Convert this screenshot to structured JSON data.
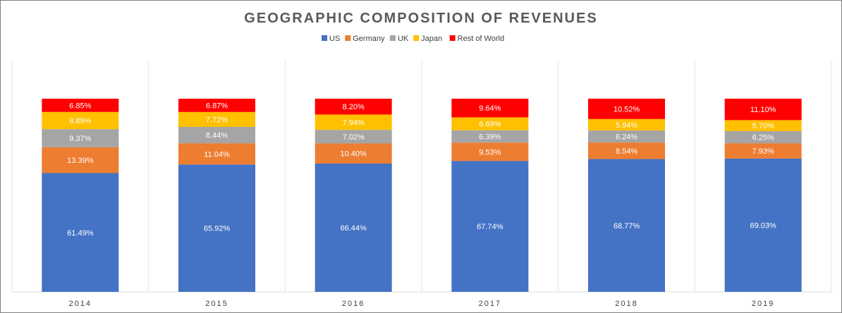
{
  "chart_data": {
    "type": "bar",
    "stacked": true,
    "title": "GEOGRAPHIC COMPOSITION OF REVENUES",
    "categories": [
      "2014",
      "2015",
      "2016",
      "2017",
      "2018",
      "2019"
    ],
    "series": [
      {
        "name": "US",
        "color": "#4472C4",
        "label_color": "#ffffff",
        "values": [
          61.49,
          65.92,
          66.44,
          67.74,
          68.77,
          69.03
        ]
      },
      {
        "name": "Germany",
        "color": "#ED7D31",
        "label_color": "#ffffff",
        "values": [
          13.39,
          11.04,
          10.4,
          9.53,
          8.54,
          7.93
        ]
      },
      {
        "name": "UK",
        "color": "#A5A5A5",
        "label_color": "#ffffff",
        "values": [
          9.37,
          8.44,
          7.02,
          6.39,
          6.24,
          6.25
        ]
      },
      {
        "name": "Japan",
        "color": "#FFC000",
        "label_color": "#ffffff",
        "values": [
          8.89,
          7.72,
          7.94,
          6.69,
          5.94,
          5.7
        ]
      },
      {
        "name": "Rest of World",
        "color": "#FF0000",
        "label_color": "#ffffff",
        "values": [
          6.85,
          6.87,
          8.2,
          9.64,
          10.52,
          11.1
        ]
      }
    ],
    "value_format": "0.00%",
    "legend_position": "top",
    "vertical_gridlines": true,
    "ylim": [
      0,
      100
    ]
  }
}
